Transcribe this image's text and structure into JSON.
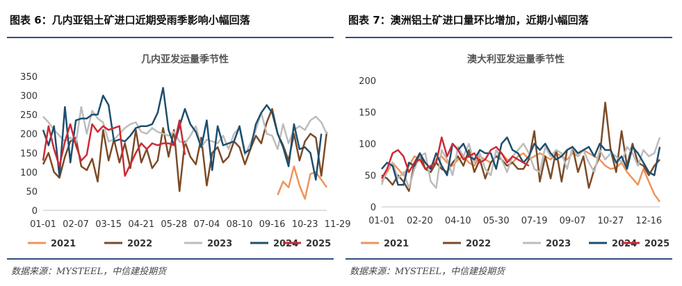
{
  "panels": [
    {
      "heading": "图表 6：几内亚铝土矿进口近期受雨季影响小幅回落",
      "source": "数据来源：MYSTEEL，中信建投期货"
    },
    {
      "heading": "图表 7：澳洲铝土矿进口量环比增加，近期小幅回落",
      "source": "数据来源：MYSTEEL，中信建投期货"
    }
  ],
  "chart_data": [
    {
      "type": "line",
      "title": "几内亚发运量季节性",
      "ylim": [
        0,
        350
      ],
      "yticks": [
        0,
        50,
        100,
        150,
        200,
        250,
        300,
        350
      ],
      "x_labels": [
        "01-01",
        "02-07",
        "03-15",
        "04-21",
        "05-28",
        "07-04",
        "08-10",
        "09-16",
        "10-23",
        "11-29"
      ],
      "x_count": 53,
      "grid": false,
      "legend_position": "bottom",
      "series": [
        {
          "name": "2021",
          "color": "#f0935a",
          "x": [
            43,
            44,
            45,
            46,
            47,
            48,
            49,
            50,
            51,
            52
          ],
          "values": [
            40,
            75,
            60,
            115,
            65,
            30,
            95,
            100,
            80,
            60
          ]
        },
        {
          "name": "2022",
          "color": "#7b4a26",
          "values": [
            120,
            150,
            100,
            85,
            140,
            180,
            190,
            115,
            105,
            135,
            75,
            210,
            130,
            185,
            125,
            175,
            110,
            210,
            125,
            160,
            110,
            130,
            215,
            140,
            210,
            50,
            180,
            140,
            120,
            190,
            65,
            150,
            165,
            125,
            140,
            180,
            165,
            120,
            160,
            195,
            175,
            230,
            265,
            200,
            170,
            130,
            200,
            130,
            180,
            200,
            190,
            90,
            205
          ]
        },
        {
          "name": "2023",
          "color": "#bcbcbc",
          "values": [
            245,
            230,
            210,
            195,
            180,
            190,
            175,
            270,
            200,
            260,
            240,
            230,
            180,
            185,
            200,
            215,
            225,
            230,
            205,
            200,
            215,
            205,
            200,
            195,
            205,
            180,
            175,
            195,
            220,
            165,
            185,
            180,
            175,
            195,
            160,
            200,
            215,
            145,
            175,
            210,
            255,
            200,
            195,
            160,
            225,
            175,
            210,
            220,
            210,
            235,
            245,
            230,
            200
          ]
        },
        {
          "name": "2024",
          "color": "#1d4e6e",
          "values": [
            210,
            170,
            220,
            90,
            270,
            125,
            235,
            240,
            240,
            250,
            250,
            300,
            275,
            180,
            185,
            180,
            195,
            215,
            220,
            220,
            225,
            255,
            320,
            210,
            170,
            220,
            265,
            225,
            205,
            165,
            235,
            105,
            220,
            170,
            175,
            180,
            220,
            150,
            160,
            225,
            255,
            275,
            255,
            200,
            165,
            115,
            225,
            160,
            165,
            150,
            80,
            200,
            null
          ]
        },
        {
          "name": "2025",
          "color": "#cc2a36",
          "values": [
            130,
            220,
            160,
            115,
            180,
            225,
            170,
            130,
            145,
            225,
            205,
            220,
            210,
            215,
            220,
            90,
            120,
            150,
            175,
            160,
            175,
            170,
            175,
            175,
            170,
            235,
            145,
            null,
            null,
            null,
            null,
            null,
            null,
            null,
            null,
            null,
            null,
            null,
            null,
            null,
            null,
            null,
            null,
            null,
            null,
            null,
            null,
            null,
            null,
            null,
            null,
            null,
            null
          ]
        }
      ]
    },
    {
      "type": "line",
      "title": "澳大利亚发运量季节性",
      "ylim": [
        0,
        200
      ],
      "yticks": [
        0,
        50,
        100,
        150,
        200
      ],
      "x_labels": [
        "01-01",
        "02-20",
        "04-10",
        "05-30",
        "07-19",
        "09-07",
        "10-27",
        "12-16"
      ],
      "x_count": 52,
      "grid": false,
      "legend_position": "bottom",
      "series": [
        {
          "name": "2021",
          "color": "#f0935a",
          "values": [
            40,
            55,
            70,
            60,
            50,
            65,
            80,
            75,
            70,
            60,
            75,
            80,
            70,
            65,
            75,
            80,
            70,
            65,
            80,
            75,
            70,
            80,
            85,
            75,
            70,
            80,
            85,
            75,
            80,
            85,
            80,
            75,
            85,
            80,
            75,
            85,
            80,
            90,
            85,
            80,
            75,
            65,
            60,
            62,
            70,
            55,
            45,
            35,
            60,
            40,
            20,
            8
          ]
        },
        {
          "name": "2022",
          "color": "#7b4a26",
          "values": [
            50,
            45,
            35,
            50,
            40,
            25,
            70,
            85,
            60,
            55,
            70,
            60,
            55,
            70,
            80,
            65,
            90,
            55,
            75,
            45,
            70,
            80,
            75,
            65,
            70,
            60,
            60,
            75,
            120,
            40,
            80,
            45,
            90,
            40,
            90,
            95,
            55,
            80,
            30,
            60,
            80,
            165,
            90,
            55,
            120,
            65,
            100,
            70,
            65,
            50,
            65,
            75
          ]
        },
        {
          "name": "2023",
          "color": "#bcbcbc",
          "values": [
            35,
            60,
            70,
            45,
            55,
            30,
            60,
            80,
            85,
            40,
            30,
            90,
            75,
            50,
            95,
            80,
            100,
            70,
            85,
            60,
            50,
            90,
            75,
            55,
            80,
            90,
            100,
            85,
            60,
            55,
            95,
            80,
            90,
            85,
            60,
            95,
            80,
            90,
            70,
            55,
            90,
            75,
            85,
            80,
            70,
            95,
            85,
            65,
            90,
            80,
            85,
            110
          ]
        },
        {
          "name": "2024",
          "color": "#1d4e6e",
          "values": [
            60,
            70,
            65,
            35,
            35,
            70,
            65,
            85,
            70,
            60,
            85,
            65,
            50,
            100,
            90,
            100,
            80,
            75,
            90,
            85,
            85,
            60,
            100,
            110,
            90,
            85,
            70,
            80,
            100,
            90,
            100,
            85,
            75,
            80,
            90,
            95,
            85,
            90,
            95,
            80,
            100,
            90,
            90,
            70,
            80,
            60,
            95,
            85,
            70,
            55,
            50,
            95
          ]
        },
        {
          "name": "2025",
          "color": "#cc2a36",
          "values": [
            45,
            60,
            85,
            90,
            80,
            55,
            70,
            75,
            60,
            65,
            70,
            110,
            80,
            100,
            90,
            75,
            80,
            85,
            70,
            75,
            90,
            95,
            85,
            70,
            80,
            75,
            70,
            65,
            null,
            null,
            null,
            null,
            null,
            null,
            null,
            null,
            null,
            null,
            null,
            null,
            null,
            null,
            null,
            null,
            null,
            null,
            null,
            null,
            null,
            null,
            null,
            null
          ]
        }
      ]
    }
  ]
}
